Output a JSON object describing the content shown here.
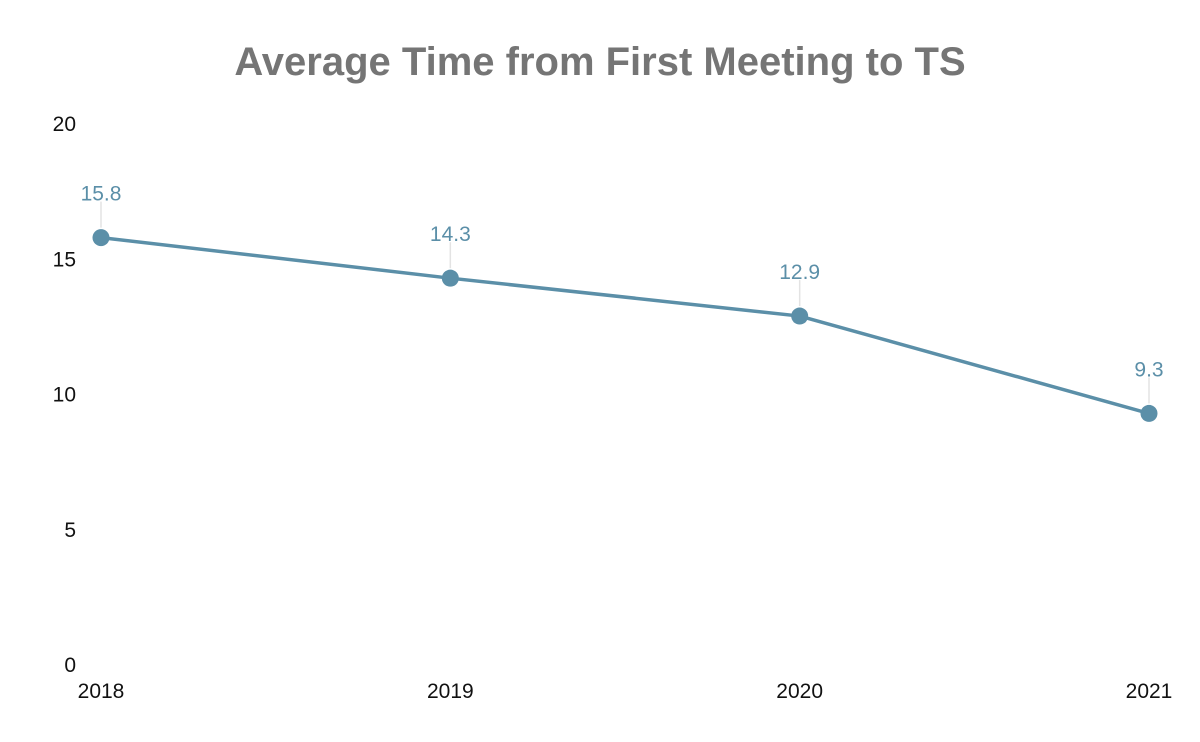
{
  "chart_data": {
    "type": "line",
    "title": "Average Time from First Meeting to TS",
    "xlabel": "",
    "ylabel": "",
    "categories": [
      "2018",
      "2019",
      "2020",
      "2021"
    ],
    "series": [
      {
        "name": "Average Time from First Meeting to TS",
        "values": [
          15.8,
          14.3,
          12.9,
          9.3
        ],
        "labels": [
          "15.8",
          "14.3",
          "12.9",
          "9.3"
        ]
      }
    ],
    "ylim": [
      0,
      20
    ],
    "yticks": [
      0,
      5,
      10,
      15,
      20
    ],
    "ytick_labels": [
      "0",
      "5",
      "10",
      "15",
      "20"
    ],
    "grid": false,
    "legend": "none",
    "colors": {
      "line": "#5b8fa8",
      "title": "#757575",
      "data_label": "#5b8fa8"
    }
  }
}
